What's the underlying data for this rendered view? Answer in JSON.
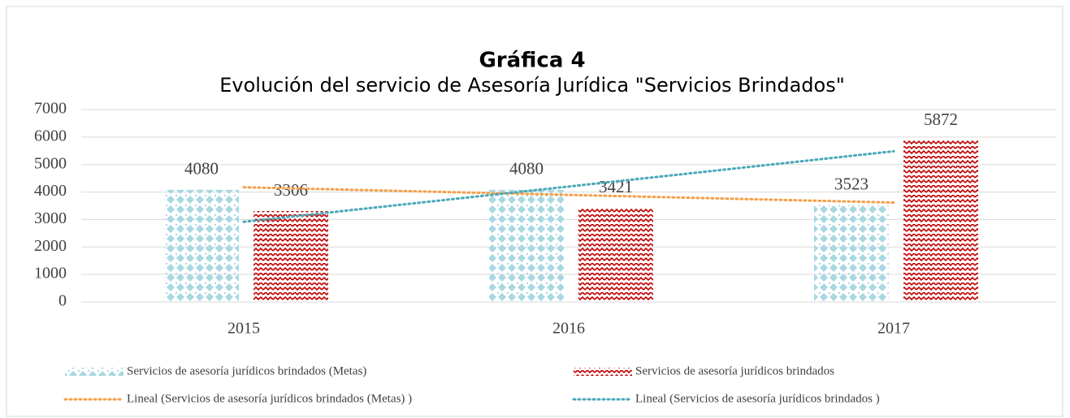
{
  "chart_data": {
    "type": "bar",
    "title": "Gráfica 4",
    "subtitle": "Evolución del servicio de Asesoría Jurídica \"Servicios Brindados\"",
    "categories": [
      "2015",
      "2016",
      "2017"
    ],
    "series": [
      {
        "name": "Servicios de asesoría jurídicos brindados (Metas)",
        "color": "#a8d8e2",
        "values": [
          4080,
          4080,
          3523
        ]
      },
      {
        "name": "Servicios de asesoría jurídicos brindados",
        "color": "#c00000",
        "values": [
          3306,
          3421,
          5872
        ]
      }
    ],
    "trendlines": [
      {
        "name": "Lineal (Servicios de asesoría jurídicos brindados (Metas) )",
        "color": "#f4a04a",
        "values": [
          4173,
          3895,
          3616
        ]
      },
      {
        "name": "Lineal (Servicios de asesoría jurídicos brindados )",
        "color": "#4aa8b8",
        "values": [
          2917,
          4200,
          5483
        ]
      }
    ],
    "ylim": [
      0,
      7000
    ],
    "yticks": [
      0,
      1000,
      2000,
      3000,
      4000,
      5000,
      6000,
      7000
    ],
    "grid": true,
    "legend": "bottom"
  }
}
